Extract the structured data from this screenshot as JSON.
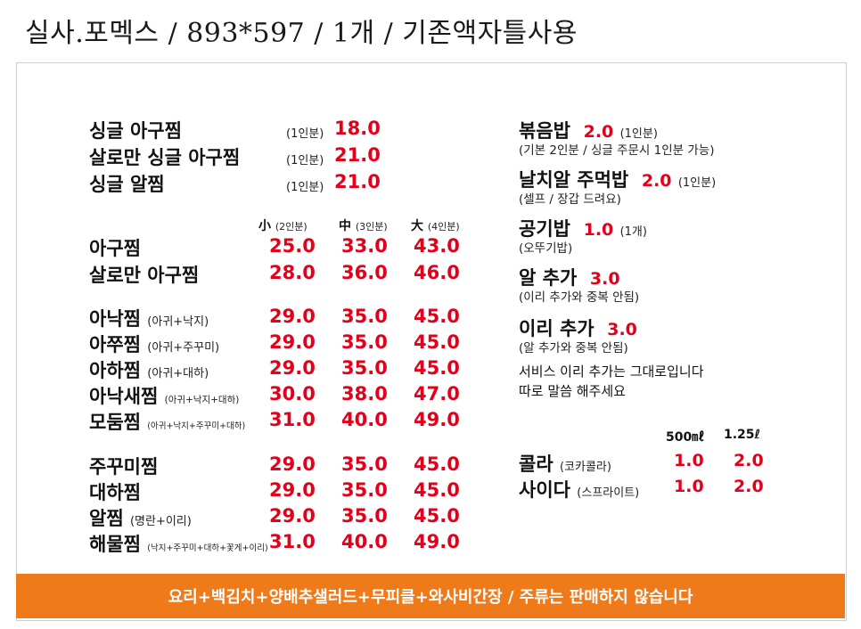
{
  "header": {
    "title": "실사.포멕스  / 893*597 / 1개 / 기존액자틀사용"
  },
  "top_singles": [
    {
      "name": "싱글 아구찜",
      "qty": "(1인분)",
      "price": "18.0"
    },
    {
      "name": "살로만 싱글 아구찜",
      "qty": "(1인분)",
      "price": "21.0"
    },
    {
      "name": "싱글 알찜",
      "qty": "(1인분)",
      "price": "21.0"
    }
  ],
  "size_header": {
    "small": "小",
    "small_note": "(2인분)",
    "medium": "中",
    "medium_note": "(3인분)",
    "large": "大",
    "large_note": "(4인분)"
  },
  "group1": [
    {
      "name": "아구찜",
      "note": "",
      "s": "25.0",
      "m": "33.0",
      "l": "43.0"
    },
    {
      "name": "살로만 아구찜",
      "note": "",
      "s": "28.0",
      "m": "36.0",
      "l": "46.0"
    }
  ],
  "group2": [
    {
      "name": "아낙찜",
      "note": "(아귀+낙지)",
      "s": "29.0",
      "m": "35.0",
      "l": "45.0"
    },
    {
      "name": "아쭈찜",
      "note": "(아귀+주꾸미)",
      "s": "29.0",
      "m": "35.0",
      "l": "45.0"
    },
    {
      "name": "아하찜",
      "note": "(아귀+대하)",
      "s": "29.0",
      "m": "35.0",
      "l": "45.0"
    },
    {
      "name": "아낙새찜",
      "note": "(아귀+낙지+대하)",
      "s": "30.0",
      "m": "38.0",
      "l": "47.0"
    },
    {
      "name": "모둠찜",
      "note": "(아귀+낙지+주꾸미+대하)",
      "s": "31.0",
      "m": "40.0",
      "l": "49.0"
    }
  ],
  "group3": [
    {
      "name": "주꾸미찜",
      "note": "",
      "s": "29.0",
      "m": "35.0",
      "l": "45.0"
    },
    {
      "name": "대하찜",
      "note": "",
      "s": "29.0",
      "m": "35.0",
      "l": "45.0"
    },
    {
      "name": "알찜",
      "note": "(명란+이리)",
      "s": "29.0",
      "m": "35.0",
      "l": "45.0"
    },
    {
      "name": "해물찜",
      "note": "(낙지+주꾸미+대하+꽃게+이리)",
      "s": "31.0",
      "m": "40.0",
      "l": "49.0"
    }
  ],
  "right": {
    "fried_rice": {
      "name": "볶음밥",
      "price": "2.0",
      "qty": "(1인분)",
      "note": "(기본 2인분 / 싱글 주문시 1인분 가능)"
    },
    "roe_rice": {
      "name": "날치알 주먹밥",
      "price": "2.0",
      "qty": "(1인분)",
      "note": "(셀프 / 장갑 드려요)"
    },
    "rice": {
      "name": "공기밥",
      "price": "1.0",
      "qty": "(1개)",
      "note": "(오뚜기밥)"
    },
    "roe_add": {
      "name": "알 추가",
      "price": "3.0",
      "note": "(이리 추가와 중복 안됨)"
    },
    "milt_add": {
      "name": "이리 추가",
      "price": "3.0",
      "note": "(알 추가와 중복 안됨)"
    },
    "service_1": "서비스 이리 추가는 그대로입니다",
    "service_2": "따로 말씀 해주세요",
    "vol_small": "500㎖",
    "vol_large": "1.25ℓ",
    "drinks": [
      {
        "name": "콜라",
        "brand": "(코카콜라)",
        "small": "1.0",
        "large": "2.0"
      },
      {
        "name": "사이다",
        "brand": "(스프라이트)",
        "small": "1.0",
        "large": "2.0"
      }
    ]
  },
  "footer": {
    "text": "요리+백김치+양배추샐러드+무피클+와사비간장 / 주류는 판매하지 않습니다"
  }
}
